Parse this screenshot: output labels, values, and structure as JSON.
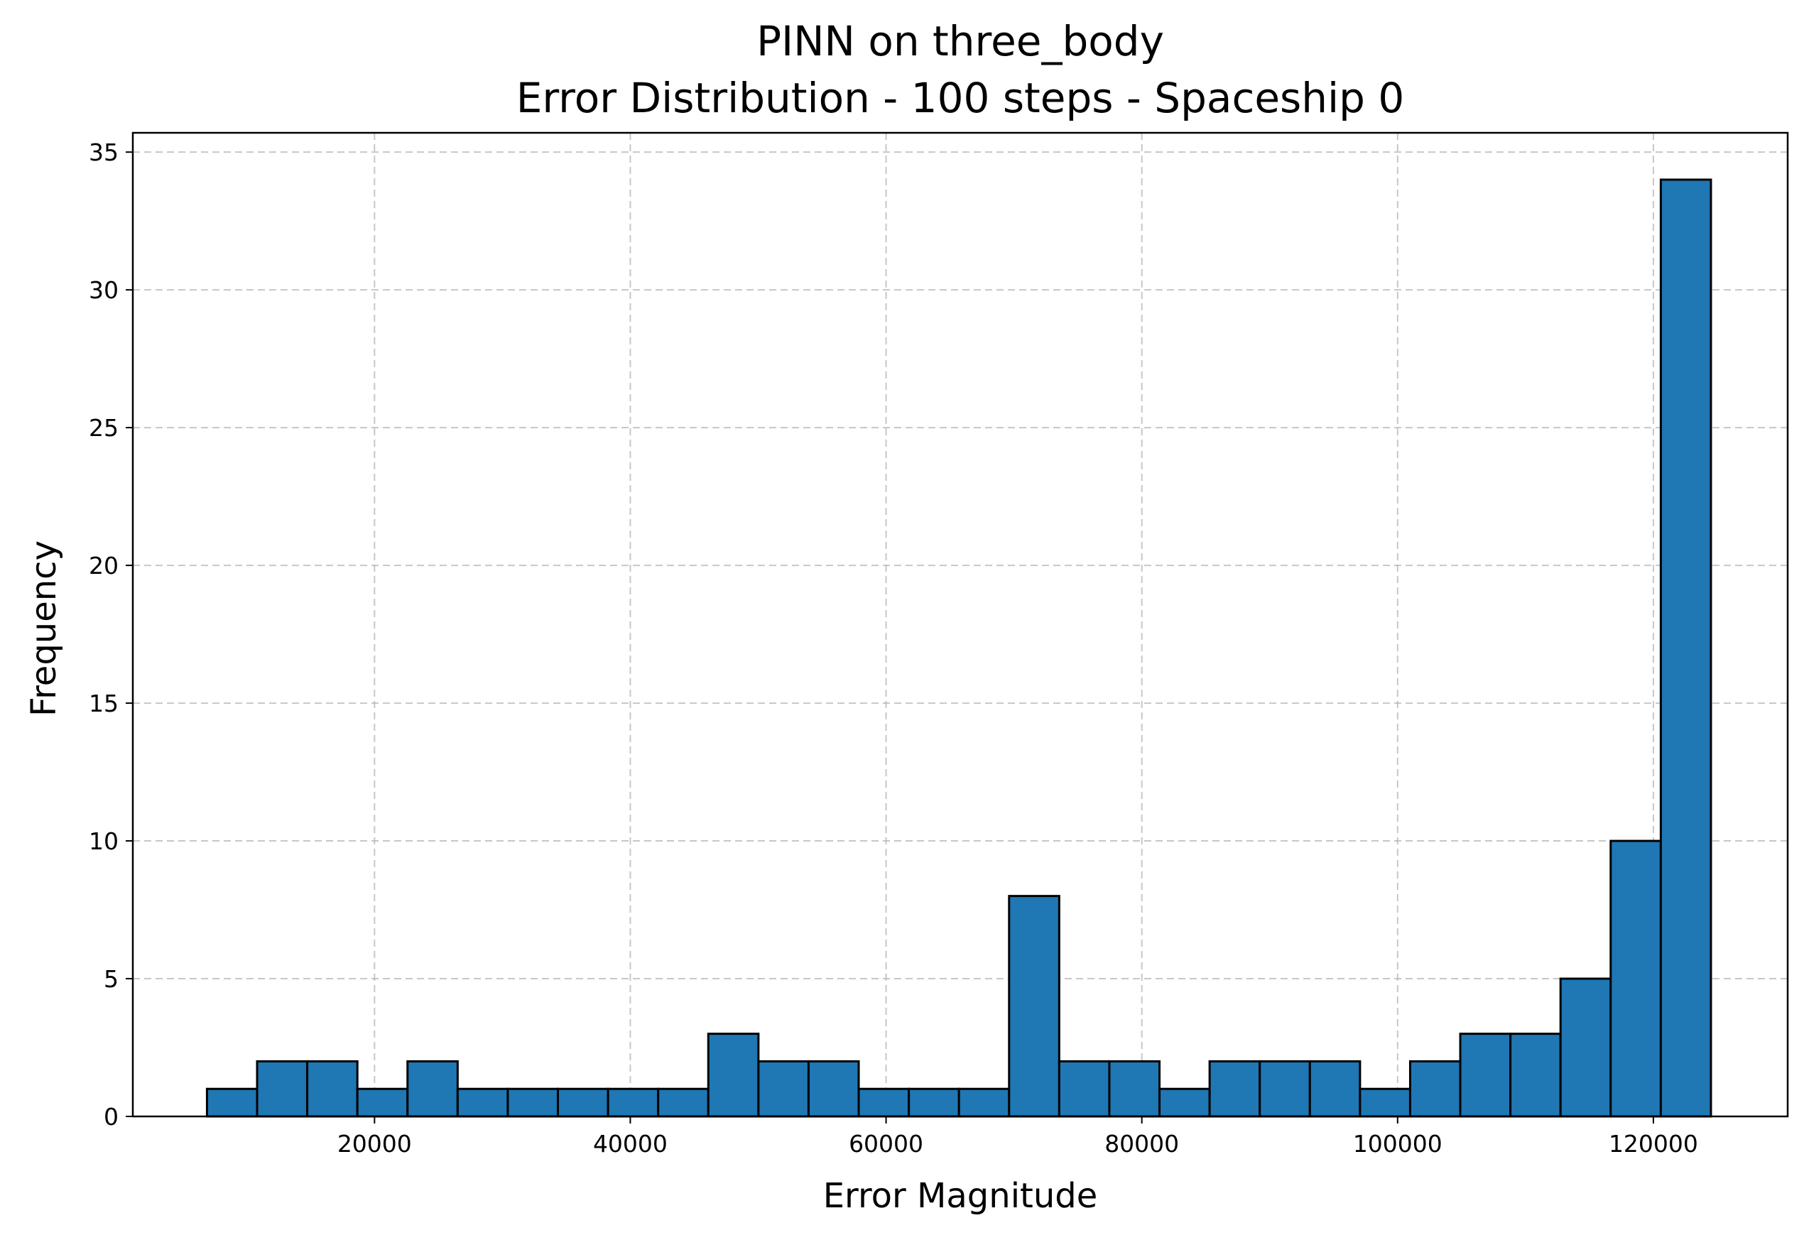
{
  "chart_data": {
    "type": "bar",
    "title": "PINN on three_body",
    "subtitle": "Error Distribution - 100 steps - Spaceship 0",
    "xlabel": "Error Magnitude",
    "ylabel": "Frequency",
    "xlim": [
      1100,
      130500
    ],
    "ylim": [
      0,
      35.7
    ],
    "x_ticks": [
      20000,
      40000,
      60000,
      80000,
      100000,
      120000
    ],
    "x_tick_labels": [
      "20000",
      "40000",
      "60000",
      "80000",
      "100000",
      "120000"
    ],
    "y_ticks": [
      0,
      5,
      10,
      15,
      20,
      25,
      30,
      35
    ],
    "y_tick_labels": [
      "0",
      "5",
      "10",
      "15",
      "20",
      "25",
      "30",
      "35"
    ],
    "grid": true,
    "bar_color": "#1f77b4",
    "bin_start": 6900,
    "bin_width": 3920,
    "values": [
      1,
      2,
      2,
      1,
      2,
      1,
      1,
      1,
      1,
      1,
      3,
      2,
      2,
      1,
      1,
      1,
      8,
      2,
      2,
      1,
      2,
      2,
      2,
      1,
      2,
      3,
      3,
      5,
      10,
      34
    ]
  }
}
